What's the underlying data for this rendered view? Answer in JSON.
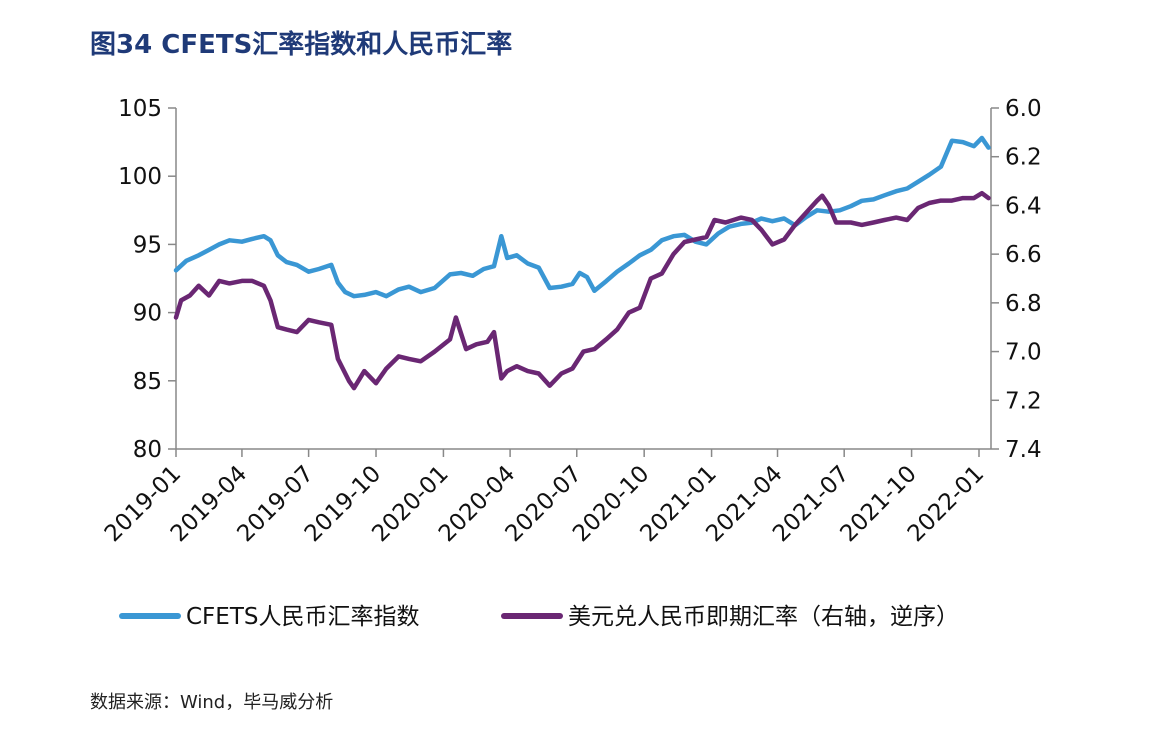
{
  "title": "图34  CFETS汇率指数和人民币汇率",
  "source": "数据来源：Wind，毕马威分析",
  "chart_data": {
    "type": "line",
    "x_ticks": [
      "2019-01",
      "2019-04",
      "2019-07",
      "2019-10",
      "2020-01",
      "2020-04",
      "2020-07",
      "2020-10",
      "2021-01",
      "2021-04",
      "2021-07",
      "2021-10",
      "2022-01"
    ],
    "y_left": {
      "min": 80,
      "max": 105,
      "ticks": [
        80,
        85,
        90,
        95,
        100,
        105
      ]
    },
    "y_right": {
      "min": 6.0,
      "max": 7.4,
      "reversed": true,
      "ticks": [
        "6.0",
        "6.2",
        "6.4",
        "6.6",
        "6.8",
        "7.0",
        "7.2",
        "7.4"
      ]
    },
    "series": [
      {
        "name": "CFETS人民币汇率指数",
        "axis": "left",
        "color": "#3a97d4",
        "values": [
          [
            "2019-01-01",
            93.1
          ],
          [
            "2019-01-15",
            93.8
          ],
          [
            "2019-02-01",
            94.2
          ],
          [
            "2019-02-15",
            94.6
          ],
          [
            "2019-03-01",
            95.0
          ],
          [
            "2019-03-15",
            95.3
          ],
          [
            "2019-04-01",
            95.2
          ],
          [
            "2019-04-15",
            95.4
          ],
          [
            "2019-05-01",
            95.6
          ],
          [
            "2019-05-10",
            95.3
          ],
          [
            "2019-05-20",
            94.2
          ],
          [
            "2019-06-01",
            93.7
          ],
          [
            "2019-06-15",
            93.5
          ],
          [
            "2019-07-01",
            93.0
          ],
          [
            "2019-07-15",
            93.2
          ],
          [
            "2019-08-01",
            93.5
          ],
          [
            "2019-08-10",
            92.2
          ],
          [
            "2019-08-20",
            91.5
          ],
          [
            "2019-09-01",
            91.2
          ],
          [
            "2019-09-15",
            91.3
          ],
          [
            "2019-10-01",
            91.5
          ],
          [
            "2019-10-15",
            91.2
          ],
          [
            "2019-11-01",
            91.7
          ],
          [
            "2019-11-15",
            91.9
          ],
          [
            "2019-12-01",
            91.5
          ],
          [
            "2019-12-20",
            91.8
          ],
          [
            "2020-01-10",
            92.8
          ],
          [
            "2020-01-25",
            92.9
          ],
          [
            "2020-02-10",
            92.7
          ],
          [
            "2020-02-25",
            93.2
          ],
          [
            "2020-03-10",
            93.4
          ],
          [
            "2020-03-20",
            95.6
          ],
          [
            "2020-03-28",
            94.0
          ],
          [
            "2020-04-10",
            94.2
          ],
          [
            "2020-04-25",
            93.6
          ],
          [
            "2020-05-10",
            93.3
          ],
          [
            "2020-05-25",
            91.8
          ],
          [
            "2020-06-10",
            91.9
          ],
          [
            "2020-06-25",
            92.1
          ],
          [
            "2020-07-05",
            92.9
          ],
          [
            "2020-07-15",
            92.6
          ],
          [
            "2020-07-25",
            91.6
          ],
          [
            "2020-08-10",
            92.3
          ],
          [
            "2020-08-25",
            93.0
          ],
          [
            "2020-09-10",
            93.6
          ],
          [
            "2020-09-25",
            94.2
          ],
          [
            "2020-10-10",
            94.6
          ],
          [
            "2020-10-25",
            95.3
          ],
          [
            "2020-11-10",
            95.6
          ],
          [
            "2020-11-25",
            95.7
          ],
          [
            "2020-12-10",
            95.2
          ],
          [
            "2020-12-25",
            95.0
          ],
          [
            "2021-01-10",
            95.8
          ],
          [
            "2021-01-25",
            96.3
          ],
          [
            "2021-02-10",
            96.5
          ],
          [
            "2021-02-25",
            96.6
          ],
          [
            "2021-03-10",
            96.9
          ],
          [
            "2021-03-25",
            96.7
          ],
          [
            "2021-04-10",
            96.9
          ],
          [
            "2021-04-25",
            96.4
          ],
          [
            "2021-05-10",
            97.0
          ],
          [
            "2021-05-25",
            97.5
          ],
          [
            "2021-06-10",
            97.4
          ],
          [
            "2021-06-25",
            97.5
          ],
          [
            "2021-07-10",
            97.8
          ],
          [
            "2021-07-25",
            98.2
          ],
          [
            "2021-08-10",
            98.3
          ],
          [
            "2021-08-25",
            98.6
          ],
          [
            "2021-09-10",
            98.9
          ],
          [
            "2021-09-25",
            99.1
          ],
          [
            "2021-10-10",
            99.6
          ],
          [
            "2021-10-25",
            100.1
          ],
          [
            "2021-11-10",
            100.7
          ],
          [
            "2021-11-25",
            102.6
          ],
          [
            "2021-12-10",
            102.5
          ],
          [
            "2021-12-25",
            102.2
          ],
          [
            "2022-01-05",
            102.8
          ],
          [
            "2022-01-14",
            102.1
          ]
        ]
      },
      {
        "name": "美元兑人民币即期汇率（右轴，逆序）",
        "axis": "right",
        "color": "#6a2773",
        "values": [
          [
            "2019-01-01",
            6.86
          ],
          [
            "2019-01-08",
            6.79
          ],
          [
            "2019-01-20",
            6.77
          ],
          [
            "2019-02-01",
            6.73
          ],
          [
            "2019-02-15",
            6.77
          ],
          [
            "2019-03-01",
            6.71
          ],
          [
            "2019-03-15",
            6.72
          ],
          [
            "2019-04-01",
            6.71
          ],
          [
            "2019-04-15",
            6.71
          ],
          [
            "2019-05-01",
            6.73
          ],
          [
            "2019-05-10",
            6.79
          ],
          [
            "2019-05-20",
            6.9
          ],
          [
            "2019-06-01",
            6.91
          ],
          [
            "2019-06-15",
            6.92
          ],
          [
            "2019-07-01",
            6.87
          ],
          [
            "2019-07-15",
            6.88
          ],
          [
            "2019-08-01",
            6.89
          ],
          [
            "2019-08-10",
            7.03
          ],
          [
            "2019-08-25",
            7.12
          ],
          [
            "2019-09-01",
            7.15
          ],
          [
            "2019-09-15",
            7.08
          ],
          [
            "2019-10-01",
            7.13
          ],
          [
            "2019-10-15",
            7.07
          ],
          [
            "2019-11-01",
            7.02
          ],
          [
            "2019-11-15",
            7.03
          ],
          [
            "2019-12-01",
            7.04
          ],
          [
            "2019-12-20",
            7.0
          ],
          [
            "2020-01-10",
            6.95
          ],
          [
            "2020-01-18",
            6.86
          ],
          [
            "2020-02-01",
            6.99
          ],
          [
            "2020-02-15",
            6.97
          ],
          [
            "2020-03-01",
            6.96
          ],
          [
            "2020-03-10",
            6.92
          ],
          [
            "2020-03-20",
            7.11
          ],
          [
            "2020-03-28",
            7.08
          ],
          [
            "2020-04-10",
            7.06
          ],
          [
            "2020-04-25",
            7.08
          ],
          [
            "2020-05-10",
            7.09
          ],
          [
            "2020-05-25",
            7.14
          ],
          [
            "2020-06-10",
            7.09
          ],
          [
            "2020-06-25",
            7.07
          ],
          [
            "2020-07-10",
            7.0
          ],
          [
            "2020-07-25",
            6.99
          ],
          [
            "2020-08-10",
            6.95
          ],
          [
            "2020-08-25",
            6.91
          ],
          [
            "2020-09-10",
            6.84
          ],
          [
            "2020-09-25",
            6.82
          ],
          [
            "2020-10-10",
            6.7
          ],
          [
            "2020-10-25",
            6.68
          ],
          [
            "2020-11-10",
            6.6
          ],
          [
            "2020-11-25",
            6.55
          ],
          [
            "2020-12-10",
            6.54
          ],
          [
            "2020-12-25",
            6.53
          ],
          [
            "2021-01-05",
            6.46
          ],
          [
            "2021-01-20",
            6.47
          ],
          [
            "2021-02-10",
            6.45
          ],
          [
            "2021-02-25",
            6.46
          ],
          [
            "2021-03-10",
            6.5
          ],
          [
            "2021-03-25",
            6.56
          ],
          [
            "2021-04-10",
            6.54
          ],
          [
            "2021-04-25",
            6.48
          ],
          [
            "2021-05-10",
            6.43
          ],
          [
            "2021-05-25",
            6.38
          ],
          [
            "2021-06-01",
            6.36
          ],
          [
            "2021-06-10",
            6.4
          ],
          [
            "2021-06-20",
            6.47
          ],
          [
            "2021-07-10",
            6.47
          ],
          [
            "2021-07-25",
            6.48
          ],
          [
            "2021-08-10",
            6.47
          ],
          [
            "2021-08-25",
            6.46
          ],
          [
            "2021-09-10",
            6.45
          ],
          [
            "2021-09-25",
            6.46
          ],
          [
            "2021-10-10",
            6.41
          ],
          [
            "2021-10-25",
            6.39
          ],
          [
            "2021-11-10",
            6.38
          ],
          [
            "2021-11-25",
            6.38
          ],
          [
            "2021-12-10",
            6.37
          ],
          [
            "2021-12-25",
            6.37
          ],
          [
            "2022-01-05",
            6.35
          ],
          [
            "2022-01-14",
            6.37
          ]
        ]
      }
    ]
  }
}
